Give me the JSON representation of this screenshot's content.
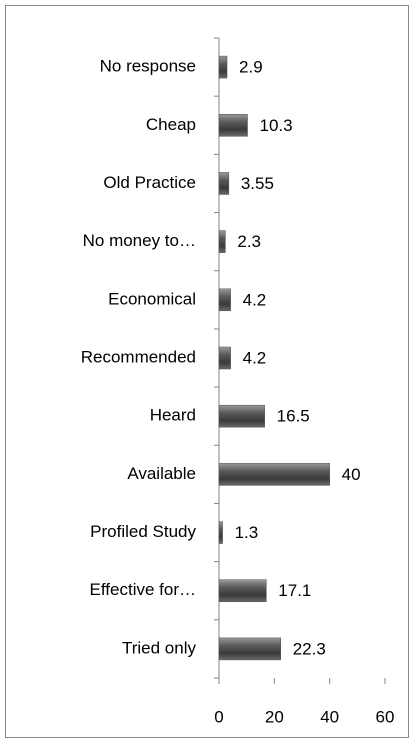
{
  "chart_data": {
    "type": "bar",
    "orientation": "horizontal",
    "categories": [
      "No response",
      "Cheap",
      "Old Practice",
      "No money to…",
      "Economical",
      "Recommended",
      "Heard",
      "Available",
      "Profiled Study",
      "Effective for…",
      "Tried only"
    ],
    "values": [
      2.9,
      10.3,
      3.55,
      2.3,
      4.2,
      4.2,
      16.5,
      40,
      1.3,
      17.1,
      22.3
    ],
    "color": "#4d4d4d",
    "xlim": [
      0,
      60
    ],
    "xticks": [
      0,
      20,
      40,
      60
    ],
    "grid": false
  }
}
